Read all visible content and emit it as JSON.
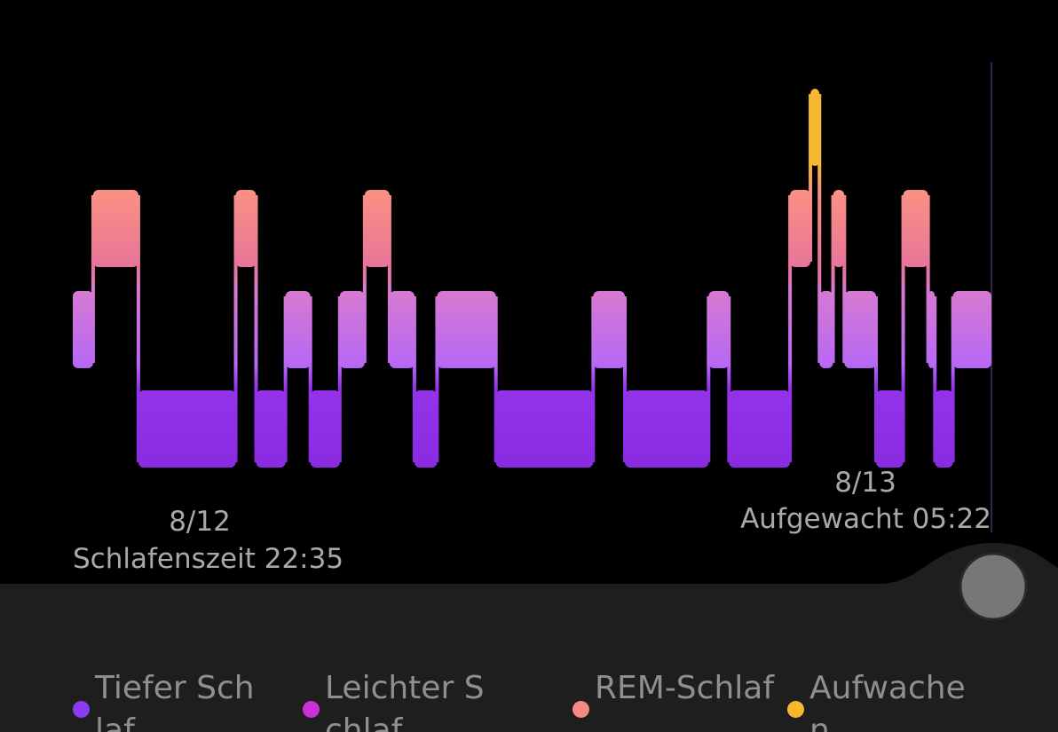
{
  "chart_data": {
    "type": "hypnogram",
    "start_date": "8/12",
    "start_label": "Schlafenszeit 22:35",
    "end_date": "8/13",
    "end_label": "Aufgewacht 05:22",
    "stages": [
      {
        "name": "Tiefer Schlaf",
        "color": "#8c3cf0"
      },
      {
        "name": "Leichter Schlaf",
        "color": "#c830d8"
      },
      {
        "name": "REM-Schlaf",
        "color": "#f58a80"
      },
      {
        "name": "Aufwachen",
        "color": "#f7b731"
      }
    ],
    "segments": [
      {
        "stage": 1,
        "minutes": 9
      },
      {
        "stage": 2,
        "minutes": 20
      },
      {
        "stage": 0,
        "minutes": 43
      },
      {
        "stage": 2,
        "minutes": 9
      },
      {
        "stage": 0,
        "minutes": 13
      },
      {
        "stage": 1,
        "minutes": 11
      },
      {
        "stage": 0,
        "minutes": 13
      },
      {
        "stage": 1,
        "minutes": 11
      },
      {
        "stage": 2,
        "minutes": 11
      },
      {
        "stage": 1,
        "minutes": 11
      },
      {
        "stage": 0,
        "minutes": 10
      },
      {
        "stage": 1,
        "minutes": 26
      },
      {
        "stage": 0,
        "minutes": 43
      },
      {
        "stage": 1,
        "minutes": 14
      },
      {
        "stage": 0,
        "minutes": 37
      },
      {
        "stage": 1,
        "minutes": 9
      },
      {
        "stage": 0,
        "minutes": 27
      },
      {
        "stage": 2,
        "minutes": 9
      },
      {
        "stage": 3,
        "minutes": 4
      },
      {
        "stage": 1,
        "minutes": 6
      },
      {
        "stage": 2,
        "minutes": 5
      },
      {
        "stage": 1,
        "minutes": 14
      },
      {
        "stage": 0,
        "minutes": 12
      },
      {
        "stage": 2,
        "minutes": 11
      },
      {
        "stage": 1,
        "minutes": 3
      },
      {
        "stage": 0,
        "minutes": 8
      },
      {
        "stage": 1,
        "minutes": 17
      }
    ]
  }
}
